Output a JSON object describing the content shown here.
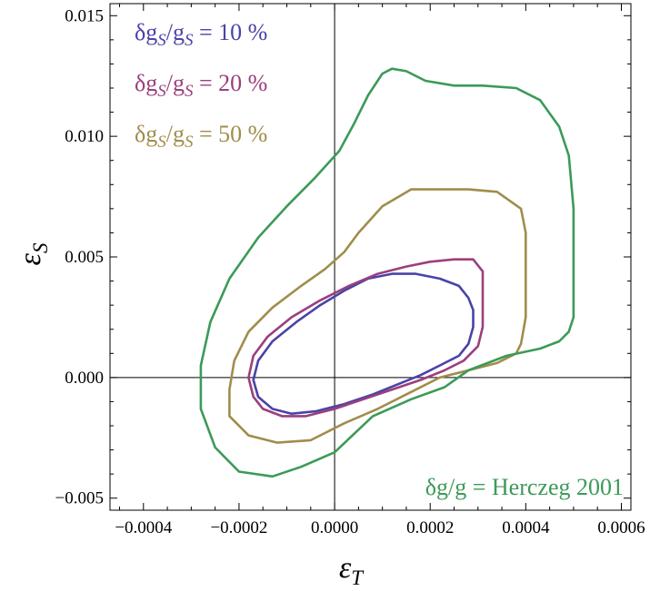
{
  "chart_data": {
    "type": "line",
    "xlabel_main": "ε",
    "xlabel_sub": "T",
    "ylabel_main": "ε",
    "ylabel_sub": "S",
    "xlim": [
      -0.00047,
      0.00062
    ],
    "ylim": [
      -0.0055,
      0.0155
    ],
    "x_ticks": [
      -0.0004,
      -0.0002,
      0.0,
      0.0002,
      0.0004,
      0.0006
    ],
    "x_tick_labels": [
      "−0.0004",
      "−0.0002",
      "0.0000",
      "0.0002",
      "0.0004",
      "0.0006"
    ],
    "y_ticks": [
      -0.005,
      0.0,
      0.005,
      0.01,
      0.015
    ],
    "y_tick_labels": [
      "−0.005",
      "0.000",
      "0.005",
      "0.010",
      "0.015"
    ],
    "grid": false,
    "legend_placement": "top-left",
    "series": [
      {
        "name": "δgS/gS = 10 %",
        "legend": {
          "delta": "δg",
          "sub1": "S",
          "slash": "/g",
          "sub2": "S",
          "tail": " = 10 %"
        },
        "color": "#4a43a8",
        "x": [
          0.00029,
          0.00029,
          0.00028,
          0.00026,
          0.00022,
          0.00018,
          0.00013,
          8e-05,
          2e-05,
          -4e-05,
          -9e-05,
          -0.00013,
          -0.00016,
          -0.00017,
          -0.00016,
          -0.00013,
          -8e-05,
          -3e-05,
          2e-05,
          7e-05,
          0.00012,
          0.00017,
          0.00022,
          0.00026,
          0.00028,
          0.00029
        ],
        "y": [
          0.0028,
          0.0021,
          0.0014,
          0.0009,
          0.0005,
          0.0001,
          -0.0003,
          -0.0007,
          -0.0011,
          -0.0014,
          -0.0015,
          -0.0013,
          -0.0008,
          -0.0001,
          0.0007,
          0.0015,
          0.0023,
          0.003,
          0.0036,
          0.0041,
          0.0043,
          0.0043,
          0.0041,
          0.0038,
          0.0033,
          0.0028
        ]
      },
      {
        "name": "δgS/gS = 20 %",
        "legend": {
          "delta": "δg",
          "sub1": "S",
          "slash": "/g",
          "sub2": "S",
          "tail": " = 20 %"
        },
        "color": "#9b3f7d",
        "x": [
          0.00031,
          0.00031,
          0.0003,
          0.00027,
          0.00023,
          0.00018,
          0.00012,
          6e-05,
          0.0,
          -6e-05,
          -0.00011,
          -0.00015,
          -0.00017,
          -0.00018,
          -0.00017,
          -0.00014,
          -9e-05,
          -3e-05,
          3e-05,
          9e-05,
          0.00015,
          0.0002,
          0.00025,
          0.00029,
          0.00031,
          0.00031
        ],
        "y": [
          0.003,
          0.0021,
          0.0013,
          0.0007,
          0.0003,
          -0.0001,
          -0.0005,
          -0.0009,
          -0.0013,
          -0.0016,
          -0.0016,
          -0.0013,
          -0.0008,
          0.0,
          0.0009,
          0.0017,
          0.0025,
          0.0032,
          0.0038,
          0.0043,
          0.0046,
          0.0048,
          0.0049,
          0.0049,
          0.0044,
          0.003
        ]
      },
      {
        "name": "δgS/gS = 50 %",
        "legend": {
          "delta": "δg",
          "sub1": "S",
          "slash": "/g",
          "sub2": "S",
          "tail": " = 50 %"
        },
        "color": "#a08d4c",
        "x": [
          0.00039,
          0.00038,
          0.00034,
          0.00028,
          0.00022,
          0.00016,
          9e-05,
          2e-05,
          -5e-05,
          -0.00012,
          -0.00018,
          -0.00022,
          -0.00022,
          -0.00021,
          -0.00018,
          -0.00013,
          -7e-05,
          -2e-05,
          2e-05,
          5e-05,
          0.0001,
          0.00016,
          0.00022,
          0.00028,
          0.00034,
          0.00039,
          0.0004,
          0.0004,
          0.00039
        ],
        "y": [
          0.0014,
          0.001,
          0.0006,
          0.0003,
          0.0,
          -0.0006,
          -0.0013,
          -0.0019,
          -0.0026,
          -0.0027,
          -0.0024,
          -0.0016,
          -0.0005,
          0.0007,
          0.0019,
          0.0029,
          0.0038,
          0.0045,
          0.0052,
          0.006,
          0.0071,
          0.0078,
          0.0078,
          0.0078,
          0.0077,
          0.007,
          0.006,
          0.0025,
          0.0014
        ]
      },
      {
        "name": "δg/g = Herczeg 2001",
        "legend": {
          "delta": "δg",
          "sub1": "",
          "slash": "/g",
          "sub2": "",
          "tail": " = Herczeg 2001"
        },
        "color": "#3c9a58",
        "x": [
          0.00049,
          0.00047,
          0.00043,
          0.00036,
          0.00028,
          0.00023,
          0.00016,
          8e-05,
          0.0,
          -7e-05,
          -0.00013,
          -0.0002,
          -0.00025,
          -0.00028,
          -0.00028,
          -0.00026,
          -0.00022,
          -0.00016,
          -0.0001,
          -4e-05,
          1e-05,
          4e-05,
          7e-05,
          0.0001,
          0.00012,
          0.00015,
          0.00019,
          0.00025,
          0.00031,
          0.00038,
          0.00043,
          0.00047,
          0.00049,
          0.0005,
          0.0005,
          0.0005,
          0.00049
        ],
        "y": [
          0.0019,
          0.0015,
          0.0012,
          0.0009,
          0.0003,
          -0.0004,
          -0.0009,
          -0.0016,
          -0.0031,
          -0.0037,
          -0.0041,
          -0.0039,
          -0.0029,
          -0.0013,
          0.0005,
          0.0023,
          0.0041,
          0.0058,
          0.0071,
          0.0083,
          0.0094,
          0.0105,
          0.0117,
          0.0126,
          0.0128,
          0.0127,
          0.0123,
          0.0121,
          0.0121,
          0.012,
          0.0115,
          0.0104,
          0.0092,
          0.007,
          0.0035,
          0.0025,
          0.0019
        ]
      }
    ]
  }
}
